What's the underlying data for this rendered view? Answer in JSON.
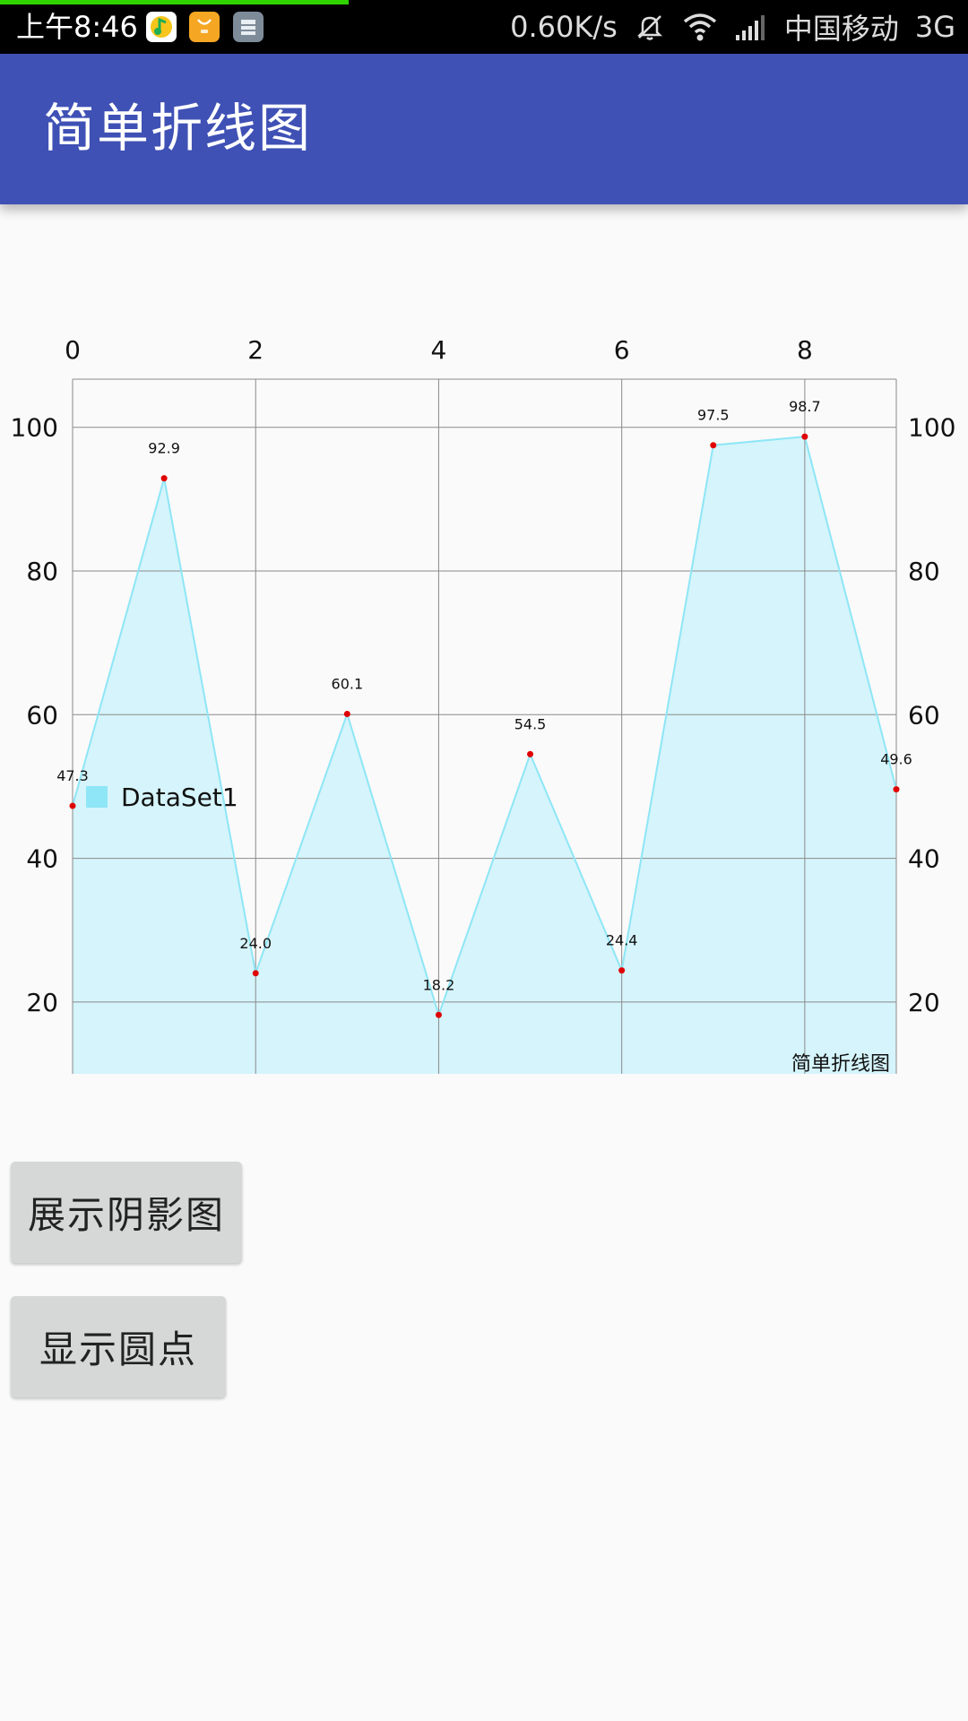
{
  "status_bar": {
    "time": "上午8:46",
    "network_speed": "0.60K/s",
    "carrier": "中国移动",
    "network_type": "3G",
    "notification_icons": [
      "qq-music-icon",
      "mi-store-icon",
      "storage-app-icon"
    ],
    "load_progress": 0.36
  },
  "app_bar": {
    "title": "简单折线图"
  },
  "chart_data": {
    "type": "area",
    "x": [
      0,
      1,
      2,
      3,
      4,
      5,
      6,
      7,
      8,
      9
    ],
    "x_tick_labels": [
      "0",
      "2",
      "4",
      "6",
      "8"
    ],
    "y_tick_labels": [
      "20",
      "40",
      "60",
      "80",
      "100"
    ],
    "series": [
      {
        "name": "DataSet1",
        "values": [
          47.3,
          92.9,
          24.0,
          60.1,
          18.2,
          54.5,
          24.4,
          97.5,
          98.7,
          49.6
        ],
        "value_labels": [
          "47.3",
          "92.9",
          "24.0",
          "60.1",
          "18.2",
          "54.5",
          "24.4",
          "97.5",
          "98.7",
          "49.6"
        ],
        "line_color": "#8ee6f6",
        "fill_color": "#d5f4fb",
        "point_color": "#e00000"
      }
    ],
    "description": "简单折线图",
    "xlim": [
      0,
      9
    ],
    "ylim": [
      10,
      106.7
    ],
    "x_axis_position": "top",
    "y_axes": "left-and-right",
    "grid": true,
    "legend": "bottom-left"
  },
  "buttons": {
    "shadow_label": "展示阴影图",
    "dots_label": "显示圆点"
  }
}
